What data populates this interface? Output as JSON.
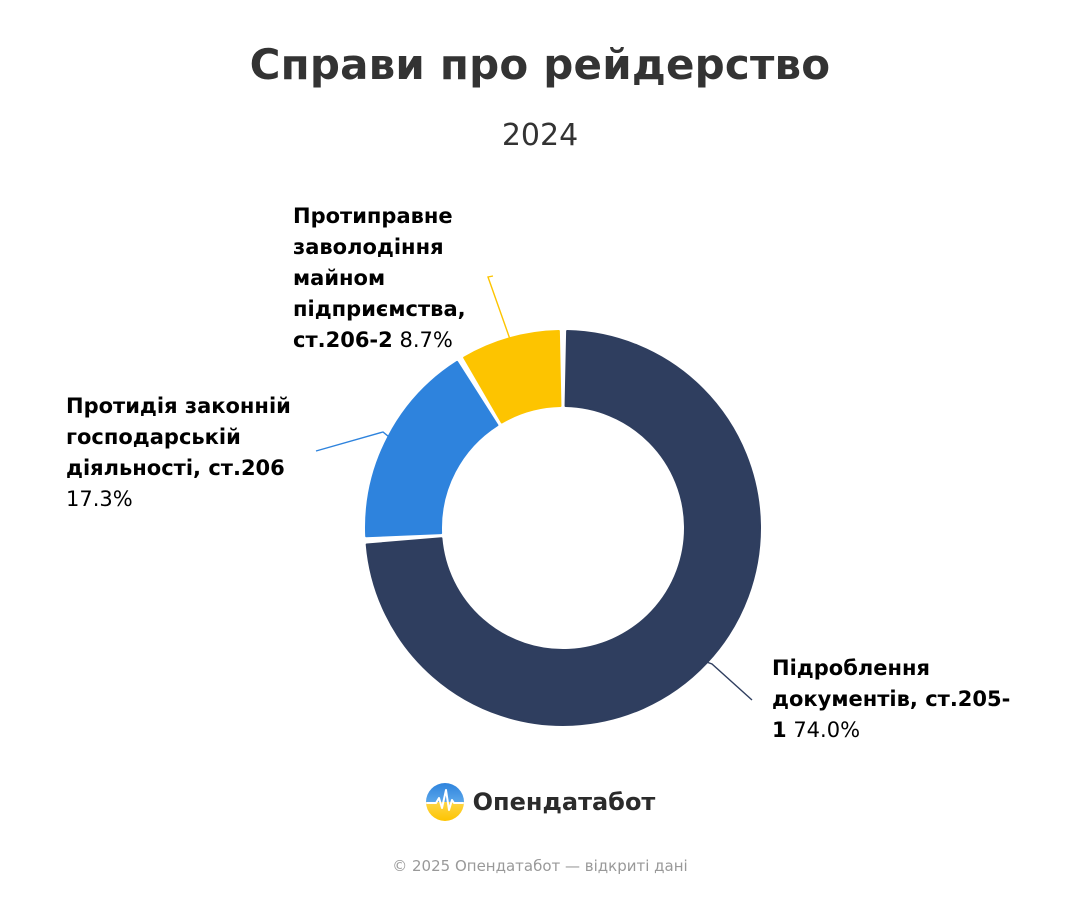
{
  "title": "Справи про рейдерство",
  "subtitle": "2024",
  "chart_data": {
    "type": "pie",
    "variant": "donut",
    "title": "Справи про рейдерство",
    "subtitle": "2024",
    "slices": [
      {
        "label": "Підроблення документів, ст.205-1",
        "value": 74.0,
        "display": "74.0%",
        "color": "#2f3e5f"
      },
      {
        "label": "Протидія законній господарській діяльності, ст.206",
        "value": 17.3,
        "display": "17.3%",
        "color": "#2e83dd"
      },
      {
        "label": "Протиправне заволодіння майном підприємства, ст.206-2",
        "value": 8.7,
        "display": "8.7%",
        "color": "#fdc400"
      }
    ]
  },
  "labels": {
    "navy_name_1": "Підроблення",
    "navy_name_2": "документів, ст.205-",
    "navy_name_3": "1",
    "navy_pct": "74.0%",
    "blue_name_1": "Протидія законній",
    "blue_name_2": "господарській",
    "blue_name_3": "діяльності, ст.206",
    "blue_pct": "17.3%",
    "yellow_name_1": "Протиправне",
    "yellow_name_2": "заволодіння",
    "yellow_name_3": "майном",
    "yellow_name_4": "підприємства,",
    "yellow_name_5": "ст.206-2",
    "yellow_pct": "8.7%"
  },
  "brand": {
    "name": "Опендатабот",
    "logo_icon": "opendatabot-logo-icon"
  },
  "footer": "© 2025 Опендатабот — відкриті дані"
}
